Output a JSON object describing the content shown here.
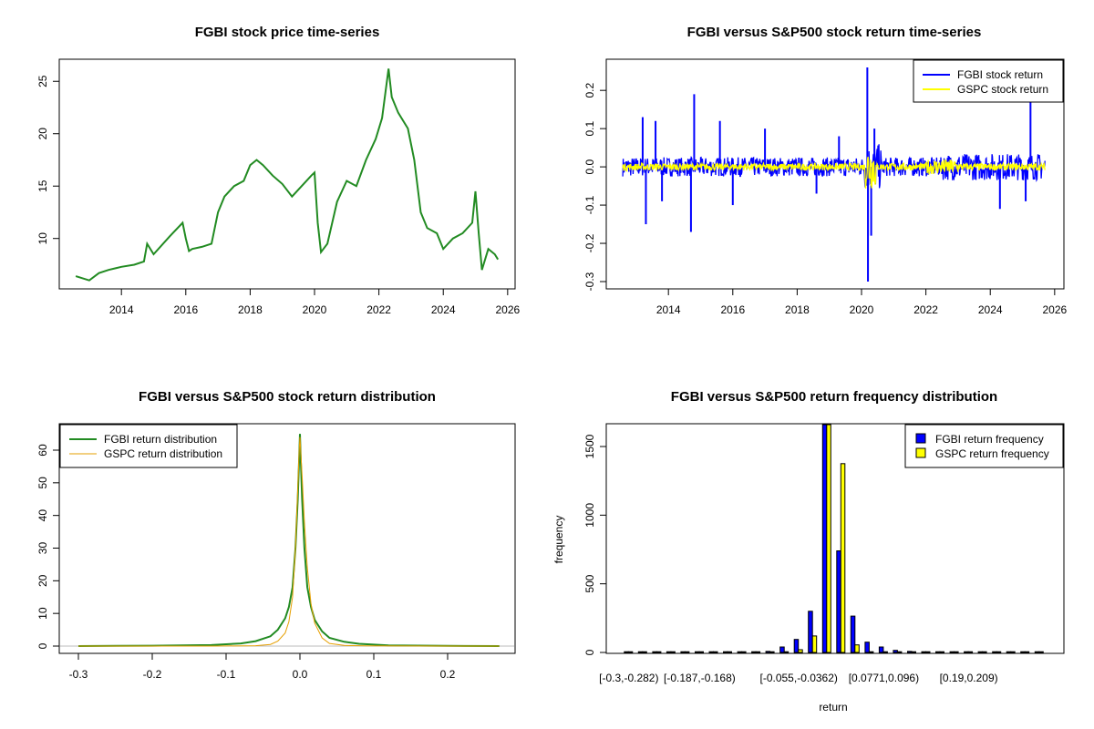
{
  "colors": {
    "fgbi_price": "#228B22",
    "fgbi_return": "#0000FF",
    "gspc_return": "#FFFF00",
    "fgbi_density": "#228B22",
    "gspc_density": "#E69F00",
    "fgbi_bar": "#0000FF",
    "gspc_bar": "#FFFF00"
  },
  "chart_data": [
    {
      "type": "line",
      "title": "FGBI stock price time-series",
      "xlabel": "",
      "ylabel": "",
      "xlim": [
        2012.55,
        2025.75
      ],
      "ylim": [
        5.8,
        26.5
      ],
      "xticks": [
        2014,
        2016,
        2018,
        2020,
        2022,
        2024,
        2026
      ],
      "yticks": [
        10,
        15,
        20,
        25
      ],
      "series": [
        {
          "x": [
            2012.58,
            2013.0,
            2013.3,
            2013.6,
            2014.0,
            2014.4,
            2014.7,
            2014.8,
            2015.0,
            2015.5,
            2015.9,
            2016.0,
            2016.1,
            2016.2,
            2016.5,
            2016.8,
            2017.0,
            2017.2,
            2017.5,
            2017.8,
            2018.0,
            2018.2,
            2018.4,
            2018.7,
            2019.0,
            2019.3,
            2019.6,
            2019.9,
            2020.0,
            2020.1,
            2020.2,
            2020.4,
            2020.7,
            2021.0,
            2021.3,
            2021.6,
            2021.9,
            2022.1,
            2022.3,
            2022.4,
            2022.6,
            2022.9,
            2023.1,
            2023.3,
            2023.5,
            2023.8,
            2024.0,
            2024.3,
            2024.6,
            2024.9,
            2025.0,
            2025.1,
            2025.2,
            2025.4,
            2025.6,
            2025.7
          ],
          "y": [
            6.4,
            6.0,
            6.7,
            7.0,
            7.3,
            7.5,
            7.8,
            9.5,
            8.5,
            10.2,
            11.5,
            10.0,
            8.8,
            9.0,
            9.2,
            9.5,
            12.5,
            14.0,
            15.0,
            15.5,
            17.0,
            17.5,
            17.0,
            16.0,
            15.2,
            14.0,
            15.0,
            16.0,
            16.3,
            11.5,
            8.7,
            9.5,
            13.5,
            15.5,
            15.0,
            17.5,
            19.5,
            21.5,
            26.2,
            23.5,
            22.0,
            20.5,
            17.5,
            12.5,
            11.0,
            10.5,
            9.0,
            10.0,
            10.5,
            11.5,
            14.5,
            10.5,
            7.0,
            9.0,
            8.5,
            8.0
          ]
        }
      ]
    },
    {
      "type": "line",
      "title": "FGBI versus S&P500 stock return time-series",
      "xlabel": "",
      "ylabel": "",
      "xlim": [
        2012.55,
        2025.75
      ],
      "ylim": [
        -0.3,
        0.26
      ],
      "xticks": [
        2014,
        2016,
        2018,
        2020,
        2022,
        2024,
        2026
      ],
      "yticks": [
        -0.3,
        -0.2,
        -0.1,
        0.0,
        0.1,
        0.2
      ],
      "ytick_labels": [
        "-0.3",
        "-0.2",
        "-0.1",
        "0.0",
        "0.1",
        "0.2"
      ],
      "legend_position": "top-right",
      "legend": [
        "FGBI stock return",
        "GSPC stock return"
      ],
      "fgbi_spikes": [
        {
          "x": 2013.2,
          "y": 0.13
        },
        {
          "x": 2013.3,
          "y": -0.15
        },
        {
          "x": 2013.6,
          "y": 0.12
        },
        {
          "x": 2013.8,
          "y": -0.09
        },
        {
          "x": 2014.8,
          "y": 0.19
        },
        {
          "x": 2014.7,
          "y": -0.17
        },
        {
          "x": 2015.6,
          "y": 0.12
        },
        {
          "x": 2016.0,
          "y": -0.1
        },
        {
          "x": 2017.0,
          "y": 0.1
        },
        {
          "x": 2018.6,
          "y": -0.07
        },
        {
          "x": 2019.3,
          "y": 0.08
        },
        {
          "x": 2020.18,
          "y": 0.26
        },
        {
          "x": 2020.2,
          "y": -0.3
        },
        {
          "x": 2020.3,
          "y": -0.18
        },
        {
          "x": 2020.4,
          "y": 0.1
        },
        {
          "x": 2024.3,
          "y": -0.11
        },
        {
          "x": 2025.25,
          "y": 0.17
        },
        {
          "x": 2025.1,
          "y": -0.09
        }
      ],
      "gspc_range": [
        -0.12,
        0.09
      ]
    },
    {
      "type": "line",
      "title": "FGBI versus S&P500 stock return distribution",
      "xlabel": "",
      "ylabel": "",
      "xlim": [
        -0.3,
        0.27
      ],
      "ylim": [
        0,
        65
      ],
      "xticks": [
        -0.3,
        -0.2,
        -0.1,
        0.0,
        0.1,
        0.2
      ],
      "xtick_labels": [
        "-0.3",
        "-0.2",
        "-0.1",
        "0.0",
        "0.1",
        "0.2"
      ],
      "yticks": [
        0,
        10,
        20,
        30,
        40,
        50,
        60
      ],
      "legend_position": "top-left",
      "series": [
        {
          "name": "FGBI return distribution",
          "x": [
            -0.3,
            -0.2,
            -0.12,
            -0.08,
            -0.06,
            -0.04,
            -0.03,
            -0.02,
            -0.015,
            -0.01,
            -0.006,
            -0.003,
            -0.001,
            0.0,
            0.001,
            0.003,
            0.006,
            0.01,
            0.015,
            0.02,
            0.03,
            0.04,
            0.06,
            0.08,
            0.12,
            0.2,
            0.27
          ],
          "y": [
            0,
            0.1,
            0.3,
            0.8,
            1.5,
            3.0,
            5.0,
            8.5,
            12.0,
            18.0,
            30.0,
            45.0,
            58.0,
            65.0,
            58.0,
            45.0,
            30.0,
            18.0,
            12.0,
            8.0,
            4.5,
            2.5,
            1.3,
            0.7,
            0.2,
            0.05,
            0
          ]
        },
        {
          "name": "GSPC return distribution",
          "x": [
            -0.3,
            -0.12,
            -0.06,
            -0.04,
            -0.03,
            -0.02,
            -0.015,
            -0.01,
            -0.006,
            -0.003,
            -0.001,
            0.0,
            0.001,
            0.003,
            0.006,
            0.01,
            0.015,
            0.02,
            0.03,
            0.04,
            0.06,
            0.09,
            0.27
          ],
          "y": [
            0,
            0,
            0.1,
            0.5,
            1.5,
            4.0,
            7.5,
            15.0,
            30.0,
            48.0,
            60.0,
            64.0,
            60.0,
            52.0,
            38.0,
            24.0,
            13.0,
            7.0,
            2.5,
            0.8,
            0.2,
            0.05,
            0
          ]
        }
      ]
    },
    {
      "type": "bar",
      "title": "FGBI versus S&P500 return frequency distribution",
      "xlabel": "return",
      "ylabel": "frequency",
      "ylim": [
        0,
        1680
      ],
      "yticks": [
        0,
        500,
        1000,
        1500
      ],
      "legend_position": "top-right",
      "categories": [
        "[-0.3,-0.282)",
        "",
        "",
        "",
        "",
        "[-0.187,-0.168)",
        "",
        "",
        "",
        "",
        "",
        "",
        "[-0.055,-0.0362)",
        "",
        "",
        "",
        "",
        "",
        "[0.0771,0.096)",
        "",
        "",
        "",
        "",
        "",
        "[0.19,0.209)",
        "",
        "",
        "",
        "",
        ""
      ],
      "series": [
        {
          "name": "FGBI return frequency",
          "values": [
            1,
            0,
            0,
            0,
            1,
            1,
            0,
            2,
            3,
            5,
            8,
            40,
            95,
            300,
            1680,
            740,
            265,
            75,
            40,
            15,
            8,
            3,
            2,
            1,
            1,
            0,
            0,
            1,
            0,
            1
          ]
        },
        {
          "name": "GSPC return frequency",
          "values": [
            0,
            0,
            0,
            0,
            0,
            0,
            0,
            0,
            0,
            0,
            0,
            5,
            20,
            120,
            1680,
            1375,
            55,
            5,
            1,
            0,
            0,
            0,
            0,
            0,
            0,
            0,
            0,
            0,
            0,
            0
          ]
        }
      ]
    }
  ]
}
